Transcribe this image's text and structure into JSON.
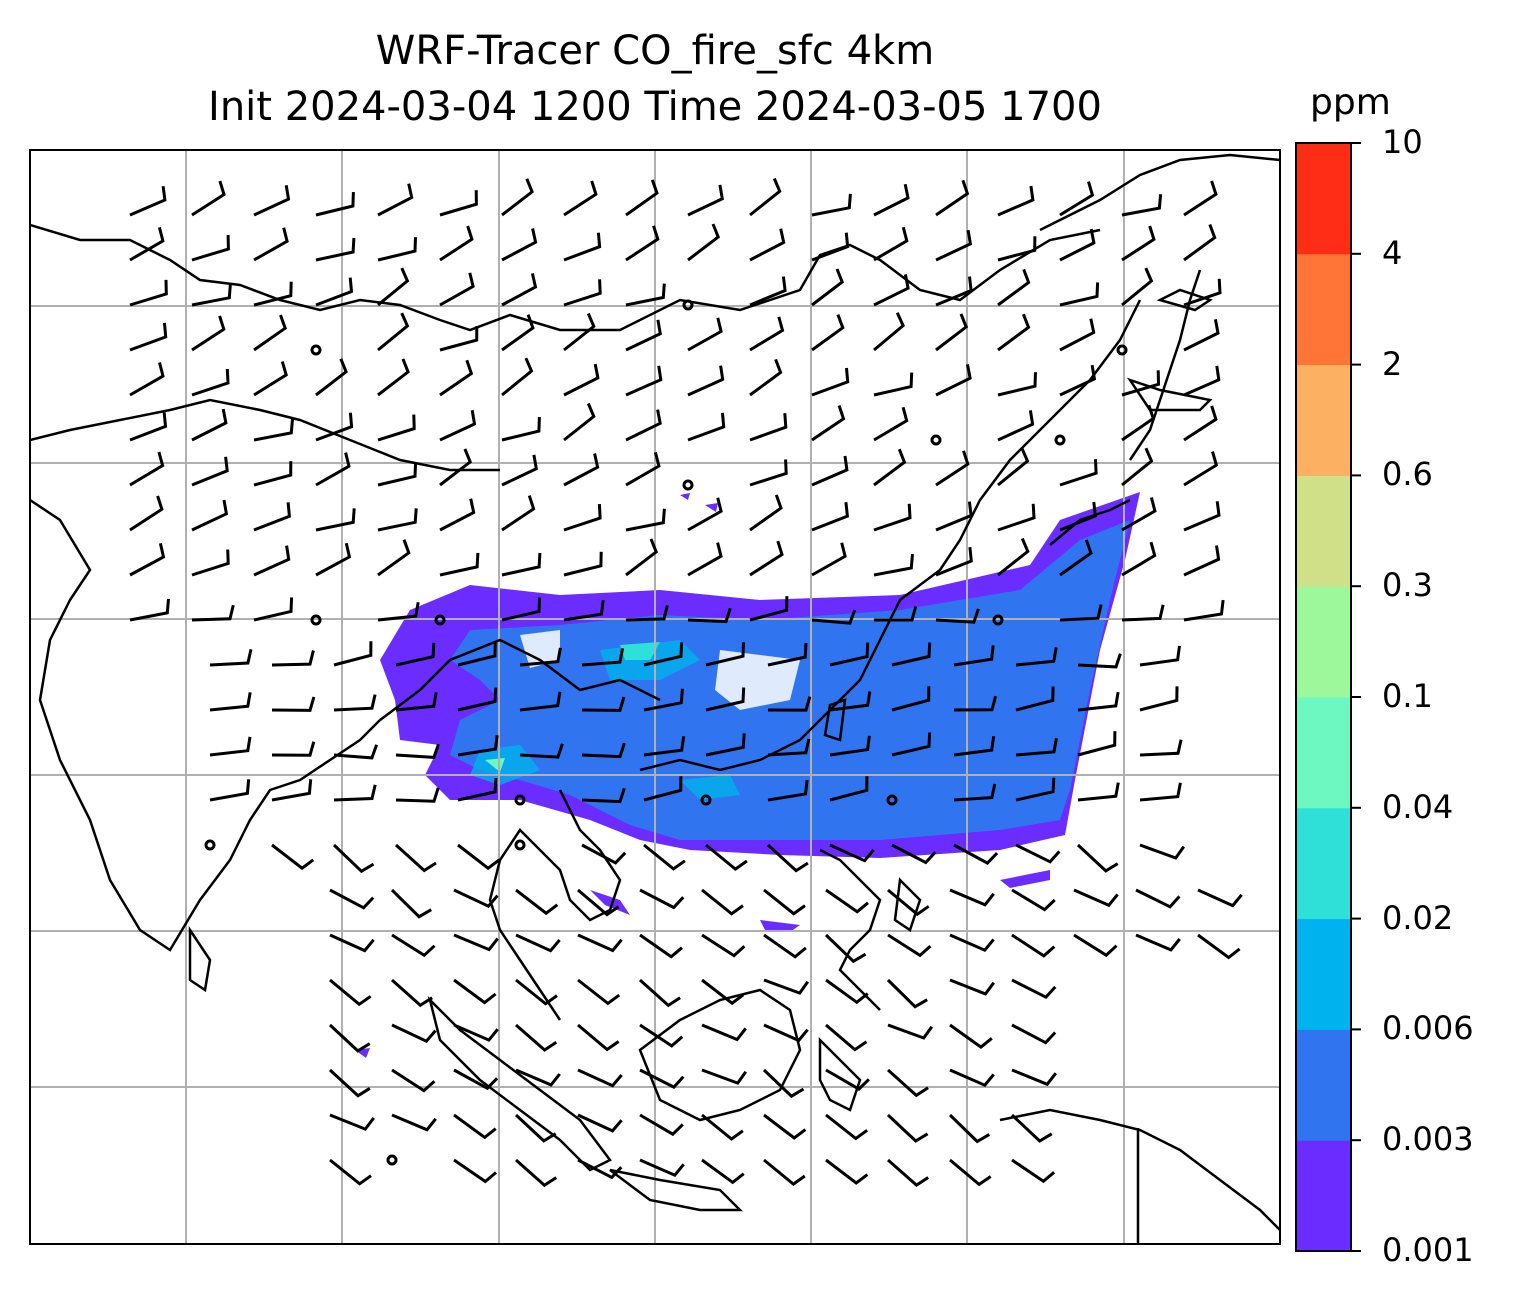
{
  "title_line1": "WRF-Tracer CO_fire_sfc 4km",
  "title_line2": "Init 2024-03-04 1200 Time 2024-03-05 1700",
  "colorbar": {
    "unit": "ppm",
    "ticks": [
      "0.001",
      "0.003",
      "0.006",
      "0.02",
      "0.04",
      "0.1",
      "0.3",
      "0.6",
      "2",
      "4",
      "10"
    ],
    "colors": [
      "#6a2cff",
      "#3174f0",
      "#00b3ee",
      "#2fe0d8",
      "#6cf8c0",
      "#9cf89a",
      "#d0e088",
      "#fbb062",
      "#ff7538",
      "#ff2c16"
    ]
  },
  "map": {
    "land_outline_color": "#000000",
    "gridline_color": "#b0b0b0",
    "wind_barb_color": "#000000"
  }
}
